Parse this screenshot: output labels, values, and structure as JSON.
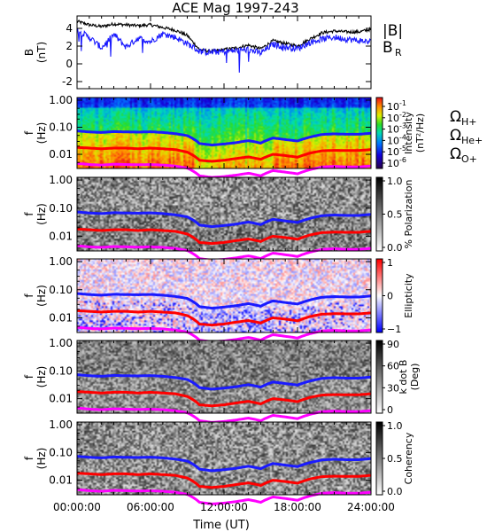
{
  "chart_data": {
    "type": "line+spectrogram",
    "title": "ACE Mag 1997-243",
    "xlabel": "Time (UT)",
    "x_ticks": [
      "00:00:00",
      "06:00:00",
      "12:00:00",
      "18:00:00",
      "24:00:00"
    ],
    "xlim_hours": [
      0,
      24
    ],
    "panels": [
      {
        "id": "field",
        "type": "line",
        "ylabel": "B",
        "yunit": "(nT)",
        "ylim": [
          -2.8,
          5.4
        ],
        "y_ticks": [
          "-2",
          "0",
          "2",
          "4"
        ],
        "series": [
          {
            "name": "|B|",
            "color": "#000000",
            "x": [
              0,
              1,
              2,
              3,
              4,
              5,
              6,
              7,
              8,
              9,
              10,
              11,
              12,
              13,
              14,
              15,
              16,
              17,
              18,
              19,
              20,
              21,
              22,
              23,
              24
            ],
            "y": [
              4.8,
              4.4,
              4.2,
              4.5,
              4.4,
              4.3,
              4.4,
              4.1,
              3.8,
              3.2,
              1.6,
              1.4,
              1.6,
              1.8,
              2.1,
              1.7,
              2.6,
              2.3,
              2.0,
              2.8,
              3.5,
              3.7,
              3.6,
              3.6,
              3.9
            ]
          },
          {
            "name": "B",
            "sub": "R",
            "color": "#1a1aff",
            "x": [
              0,
              1,
              2,
              3,
              4,
              5,
              6,
              7,
              8,
              9,
              10,
              11,
              12,
              13,
              14,
              15,
              16,
              17,
              18,
              19,
              20,
              21,
              22,
              23,
              24
            ],
            "y": [
              3.8,
              3.0,
              1.8,
              3.3,
              1.9,
              2.9,
              2.5,
              3.4,
              3.0,
              2.3,
              1.4,
              1.3,
              1.4,
              1.5,
              1.6,
              1.2,
              2.2,
              1.9,
              1.7,
              2.4,
              2.8,
              3.0,
              2.8,
              2.6,
              2.5
            ]
          }
        ]
      },
      {
        "id": "intensity",
        "type": "heatmap",
        "ylabel": "f",
        "yunit": "(Hz)",
        "y_ticks": [
          "1.00",
          "0.10",
          "0.01"
        ],
        "colorbar": {
          "label": "Intensity",
          "unit": "(nT²/Hz)",
          "ticks": [
            "10",
            "10",
            "10",
            "10",
            "10",
            "10"
          ],
          "tick_exp": [
            "-1",
            "-2",
            "-3",
            "-4",
            "-5",
            "-6"
          ]
        },
        "legend": [
          {
            "symbol": "Ω",
            "sub": "H+",
            "color": "#1a1aff"
          },
          {
            "symbol": "Ω",
            "sub": "He+",
            "color": "#ff0000"
          },
          {
            "symbol": "Ω",
            "sub": "O+",
            "color": "#ff00ff"
          }
        ]
      },
      {
        "id": "polarization",
        "type": "heatmap",
        "ylabel": "f",
        "yunit": "(Hz)",
        "y_ticks": [
          "1.00",
          "0.10",
          "0.01"
        ],
        "colorbar": {
          "label": "% Polarization",
          "ticks": [
            "1.0",
            "0.5",
            "0.0"
          ]
        }
      },
      {
        "id": "ellipticity",
        "type": "heatmap",
        "ylabel": "f",
        "yunit": "(Hz)",
        "y_ticks": [
          "1.00",
          "0.10",
          "0.01"
        ],
        "colorbar": {
          "label": "Ellipticity",
          "ticks": [
            "1",
            "0",
            "−1"
          ]
        }
      },
      {
        "id": "kdotb",
        "type": "heatmap",
        "ylabel": "f",
        "yunit": "(Hz)",
        "y_ticks": [
          "1.00",
          "0.10",
          "0.01"
        ],
        "colorbar": {
          "label": "k dot B",
          "unit": "(Deg)",
          "ticks": [
            "90",
            "60",
            "30",
            "0"
          ]
        }
      },
      {
        "id": "coherency",
        "type": "heatmap",
        "ylabel": "f",
        "yunit": "(Hz)",
        "y_ticks": [
          "1.00",
          "0.10",
          "0.01"
        ],
        "colorbar": {
          "label": "Coherency",
          "ticks": [
            "1.0",
            "0.5",
            "0.0"
          ]
        }
      }
    ],
    "gyrofrequency_lines": {
      "x_hours": [
        0,
        1,
        2,
        3,
        4,
        5,
        6,
        7,
        8,
        9,
        10,
        11,
        12,
        13,
        14,
        15,
        16,
        17,
        18,
        19,
        20,
        21,
        22,
        23,
        24
      ],
      "H+": [
        0.073,
        0.067,
        0.064,
        0.069,
        0.067,
        0.066,
        0.068,
        0.064,
        0.058,
        0.049,
        0.025,
        0.022,
        0.024,
        0.027,
        0.032,
        0.026,
        0.04,
        0.035,
        0.031,
        0.043,
        0.054,
        0.057,
        0.055,
        0.055,
        0.06
      ],
      "He+": [
        0.018,
        0.017,
        0.016,
        0.017,
        0.017,
        0.016,
        0.017,
        0.016,
        0.015,
        0.012,
        0.006,
        0.0055,
        0.006,
        0.007,
        0.008,
        0.0065,
        0.01,
        0.009,
        0.0078,
        0.011,
        0.0135,
        0.014,
        0.0138,
        0.0138,
        0.015
      ],
      "O+": [
        0.0046,
        0.0042,
        0.004,
        0.0043,
        0.0042,
        0.0041,
        0.0042,
        0.004,
        0.0037,
        0.0031,
        0.0016,
        0.0014,
        0.0015,
        0.0017,
        0.002,
        0.0016,
        0.0025,
        0.0022,
        0.0019,
        0.0027,
        0.0034,
        0.0036,
        0.0034,
        0.0034,
        0.0037
      ]
    }
  }
}
